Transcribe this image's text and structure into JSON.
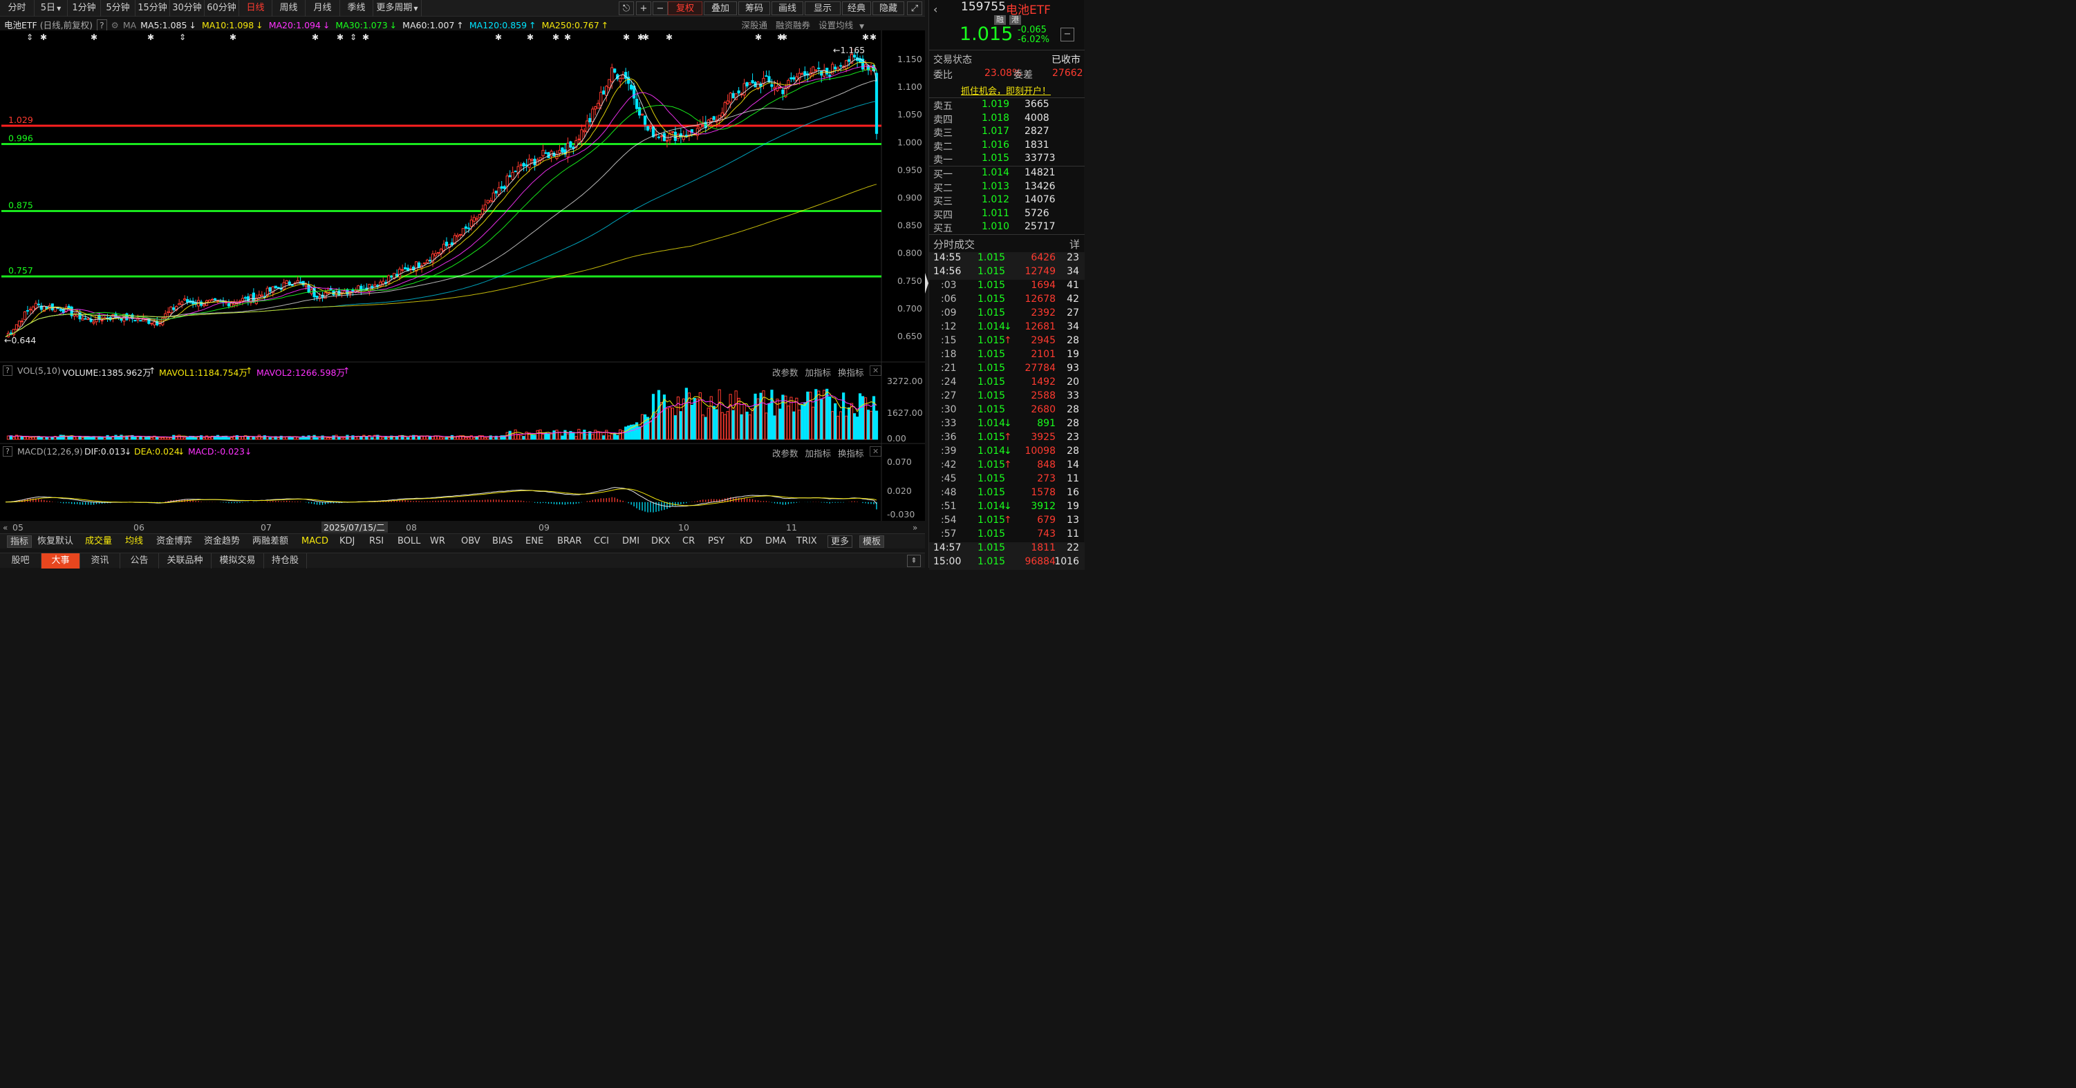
{
  "toolbar": {
    "timeframes": [
      "分时",
      "5日",
      "1分钟",
      "5分钟",
      "15分钟",
      "30分钟",
      "60分钟",
      "日线",
      "周线",
      "月线",
      "季线",
      "更多周期"
    ],
    "active": "日线",
    "right": [
      "复权",
      "叠加",
      "筹码",
      "画线",
      "显示",
      "经典",
      "隐藏"
    ]
  },
  "legend": {
    "name": "电池ETF",
    "mode": "(日线,前复权)",
    "ma_label": "MA",
    "ma": [
      {
        "t": "MA5:1.085",
        "c": "#e6e6e6",
        "a": "↓"
      },
      {
        "t": "MA10:1.098",
        "c": "#f5e70c",
        "a": "↓"
      },
      {
        "t": "MA20:1.094",
        "c": "#ff33ff",
        "a": "↓"
      },
      {
        "t": "MA30:1.073",
        "c": "#19ff1d",
        "a": "↓"
      },
      {
        "t": "MA60:1.007",
        "c": "#e6e6e6",
        "a": "↑"
      },
      {
        "t": "MA120:0.859",
        "c": "#00e5ff",
        "a": "↑"
      },
      {
        "t": "MA250:0.767",
        "c": "#f5e70c",
        "a": "↑"
      }
    ],
    "right_links": [
      "深股通",
      "融资融券",
      "设置均线"
    ]
  },
  "hlines": [
    {
      "label": "1.029",
      "color": "#ff2020",
      "price": 1.029
    },
    {
      "label": "0.996",
      "color": "#19e81d",
      "price": 0.996
    },
    {
      "label": "0.875",
      "color": "#19e81d",
      "price": 0.875
    },
    {
      "label": "0.757",
      "color": "#19e81d",
      "price": 0.757
    }
  ],
  "price_axis": {
    "labels": [
      "1.150",
      "1.100",
      "1.050",
      "1.000",
      "0.950",
      "0.900",
      "0.850",
      "0.800",
      "0.750",
      "0.700",
      "0.650"
    ],
    "max_mark": "1.165",
    "min_mark": "0.644"
  },
  "vol": {
    "title": "VOL(5,10)",
    "volume": "VOLUME:1385.962万",
    "mavol1": "MAVOL1:1184.754万",
    "mavol2": "MAVOL2:1266.598万",
    "axis": [
      "3272.00",
      "1627.00",
      "0.00"
    ]
  },
  "macd": {
    "title": "MACD(12,26,9)",
    "dif": "DIF:0.013",
    "dea": "DEA:0.024",
    "macd": "MACD:-0.023",
    "axis": [
      "0.070",
      "0.020",
      "-0.030"
    ]
  },
  "pane_links": [
    "改参数",
    "加指标",
    "换指标"
  ],
  "date_axis": {
    "labels": [
      "05",
      "06",
      "07",
      "08",
      "09",
      "10",
      "11"
    ],
    "cursor": "2025/07/15/二"
  },
  "indicator_tabs": [
    "指标",
    "恢复默认",
    "成交量",
    "均线",
    "资金博弈",
    "资金趋势",
    "两融差额",
    "MACD",
    "KDJ",
    "RSI",
    "BOLL",
    "WR",
    "OBV",
    "BIAS",
    "ENE",
    "BRAR",
    "CCI",
    "DMI",
    "DKX",
    "CR",
    "PSY",
    "KD",
    "DMA",
    "TRIX",
    "更多",
    "模板"
  ],
  "bottom_tabs": [
    "股吧",
    "大事",
    "资讯",
    "公告",
    "关联品种",
    "模拟交易",
    "持仓股"
  ],
  "quote": {
    "code": "159755",
    "name": "电池ETF",
    "tags": [
      "融",
      "港"
    ],
    "price": "1.015",
    "change": "-0.065",
    "pct": "-6.02%",
    "status_label": "交易状态",
    "status": "已收市",
    "webi_label": "委比",
    "webi": "23.08%",
    "weicha_label": "委差",
    "weicha": "27662",
    "promo": "抓住机会，即刻开户！",
    "asks": [
      {
        "l": "卖五",
        "p": "1.019",
        "v": "3665"
      },
      {
        "l": "卖四",
        "p": "1.018",
        "v": "4008"
      },
      {
        "l": "卖三",
        "p": "1.017",
        "v": "2827"
      },
      {
        "l": "卖二",
        "p": "1.016",
        "v": "1831"
      },
      {
        "l": "卖一",
        "p": "1.015",
        "v": "33773"
      }
    ],
    "bids": [
      {
        "l": "买一",
        "p": "1.014",
        "v": "14821"
      },
      {
        "l": "买二",
        "p": "1.013",
        "v": "13426"
      },
      {
        "l": "买三",
        "p": "1.012",
        "v": "14076"
      },
      {
        "l": "买四",
        "p": "1.011",
        "v": "5726"
      },
      {
        "l": "买五",
        "p": "1.010",
        "v": "25717"
      }
    ],
    "ticks_title": "分时成交",
    "ticks_more": "详",
    "ticks": [
      [
        "14:55",
        "1.015",
        "",
        "6426",
        "23"
      ],
      [
        "14:56",
        "1.015",
        "",
        "12749",
        "34"
      ],
      [
        ":03",
        "1.015",
        "",
        "1694",
        "41"
      ],
      [
        ":06",
        "1.015",
        "",
        "12678",
        "42"
      ],
      [
        ":09",
        "1.015",
        "",
        "2392",
        "27"
      ],
      [
        ":12",
        "1.014",
        "↓",
        "12681",
        "34"
      ],
      [
        ":15",
        "1.015",
        "↑",
        "2945",
        "28"
      ],
      [
        ":18",
        "1.015",
        "",
        "2101",
        "19"
      ],
      [
        ":21",
        "1.015",
        "",
        "27784",
        "93"
      ],
      [
        ":24",
        "1.015",
        "",
        "1492",
        "20"
      ],
      [
        ":27",
        "1.015",
        "",
        "2588",
        "33"
      ],
      [
        ":30",
        "1.015",
        "",
        "2680",
        "28"
      ],
      [
        ":33",
        "1.014",
        "↓",
        "891",
        "28"
      ],
      [
        ":36",
        "1.015",
        "↑",
        "3925",
        "23"
      ],
      [
        ":39",
        "1.014",
        "↓",
        "10098",
        "28"
      ],
      [
        ":42",
        "1.015",
        "↑",
        "848",
        "14"
      ],
      [
        ":45",
        "1.015",
        "",
        "273",
        "11"
      ],
      [
        ":48",
        "1.015",
        "",
        "1578",
        "16"
      ],
      [
        ":51",
        "1.014",
        "↓",
        "3912",
        "19"
      ],
      [
        ":54",
        "1.015",
        "↑",
        "679",
        "13"
      ],
      [
        ":57",
        "1.015",
        "",
        "743",
        "11"
      ],
      [
        "14:57",
        "1.015",
        "",
        "1811",
        "22"
      ],
      [
        "15:00",
        "1.015",
        "",
        "96884",
        "1016"
      ]
    ]
  }
}
